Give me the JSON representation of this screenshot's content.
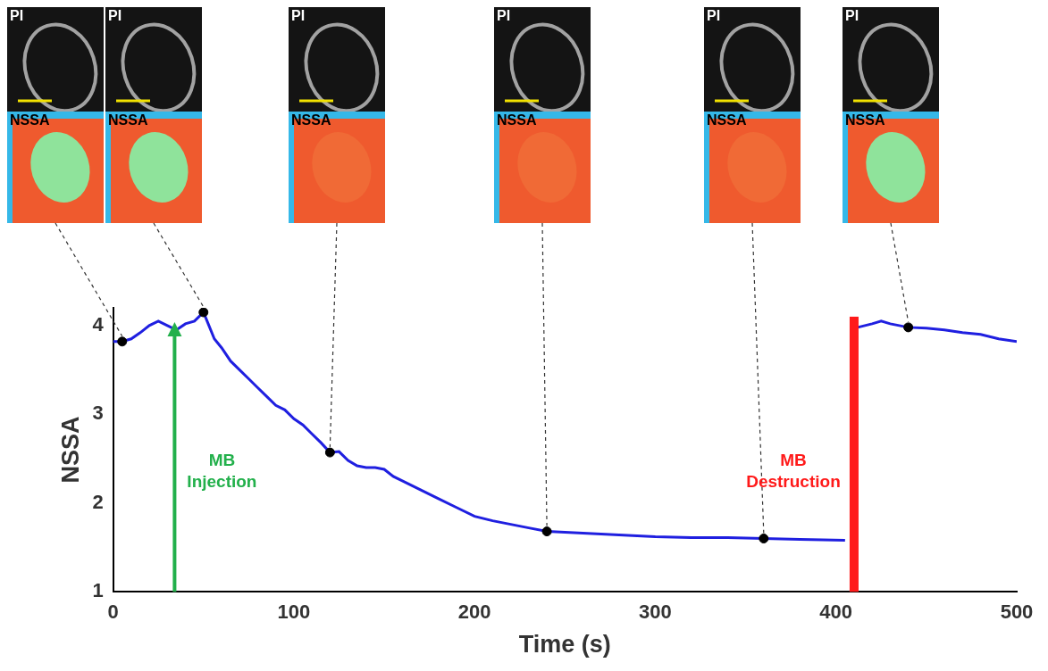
{
  "chart_data": {
    "type": "line",
    "x_label": "Time (s)",
    "y_label": "NSSA",
    "xlim": [
      0,
      500
    ],
    "xticks": [
      0,
      100,
      200,
      300,
      400,
      500
    ],
    "ylim": [
      1,
      4.2
    ],
    "yticks": [
      1,
      2,
      3,
      4
    ],
    "grid": false,
    "series": [
      {
        "color": "#1f1fe0",
        "x": [
          0,
          5,
          10,
          15,
          20,
          25,
          30,
          35,
          40,
          45,
          50,
          53,
          56,
          60,
          65,
          70,
          75,
          80,
          85,
          90,
          95,
          100,
          105,
          110,
          115,
          120,
          125,
          130,
          135,
          140,
          145,
          150,
          155,
          160,
          170,
          180,
          190,
          200,
          210,
          220,
          230,
          240,
          250,
          260,
          280,
          300,
          320,
          340,
          360,
          380,
          405,
          410,
          412,
          420,
          425,
          430,
          440,
          450,
          460,
          470,
          480,
          490,
          500
        ],
        "values": [
          3.82,
          3.82,
          3.85,
          3.92,
          4.0,
          4.05,
          4.0,
          3.95,
          4.02,
          4.05,
          4.15,
          4.0,
          3.85,
          3.75,
          3.6,
          3.5,
          3.4,
          3.3,
          3.2,
          3.1,
          3.05,
          2.95,
          2.88,
          2.78,
          2.68,
          2.57,
          2.58,
          2.48,
          2.42,
          2.4,
          2.4,
          2.38,
          2.3,
          2.25,
          2.15,
          2.05,
          1.95,
          1.85,
          1.8,
          1.76,
          1.72,
          1.68,
          1.67,
          1.66,
          1.64,
          1.62,
          1.61,
          1.61,
          1.6,
          1.59,
          1.58,
          null,
          3.98,
          4.02,
          4.05,
          4.02,
          3.98,
          3.97,
          3.95,
          3.92,
          3.9,
          3.85,
          3.82
        ]
      }
    ],
    "markers": {
      "color": "#000000",
      "x": [
        5,
        50,
        120,
        240,
        360,
        440
      ],
      "values": [
        3.82,
        4.15,
        2.57,
        1.68,
        1.6,
        3.98
      ]
    },
    "image_panels": {
      "labels": [
        "PI",
        "NSSA"
      ]
    },
    "annotations": [
      {
        "text": "MB Injection",
        "x": 34,
        "marker": "arrow",
        "color": "#22b04b"
      },
      {
        "text": "MB Destruction",
        "x": 410,
        "marker": "bar",
        "color": "#ff1a1a"
      }
    ]
  }
}
